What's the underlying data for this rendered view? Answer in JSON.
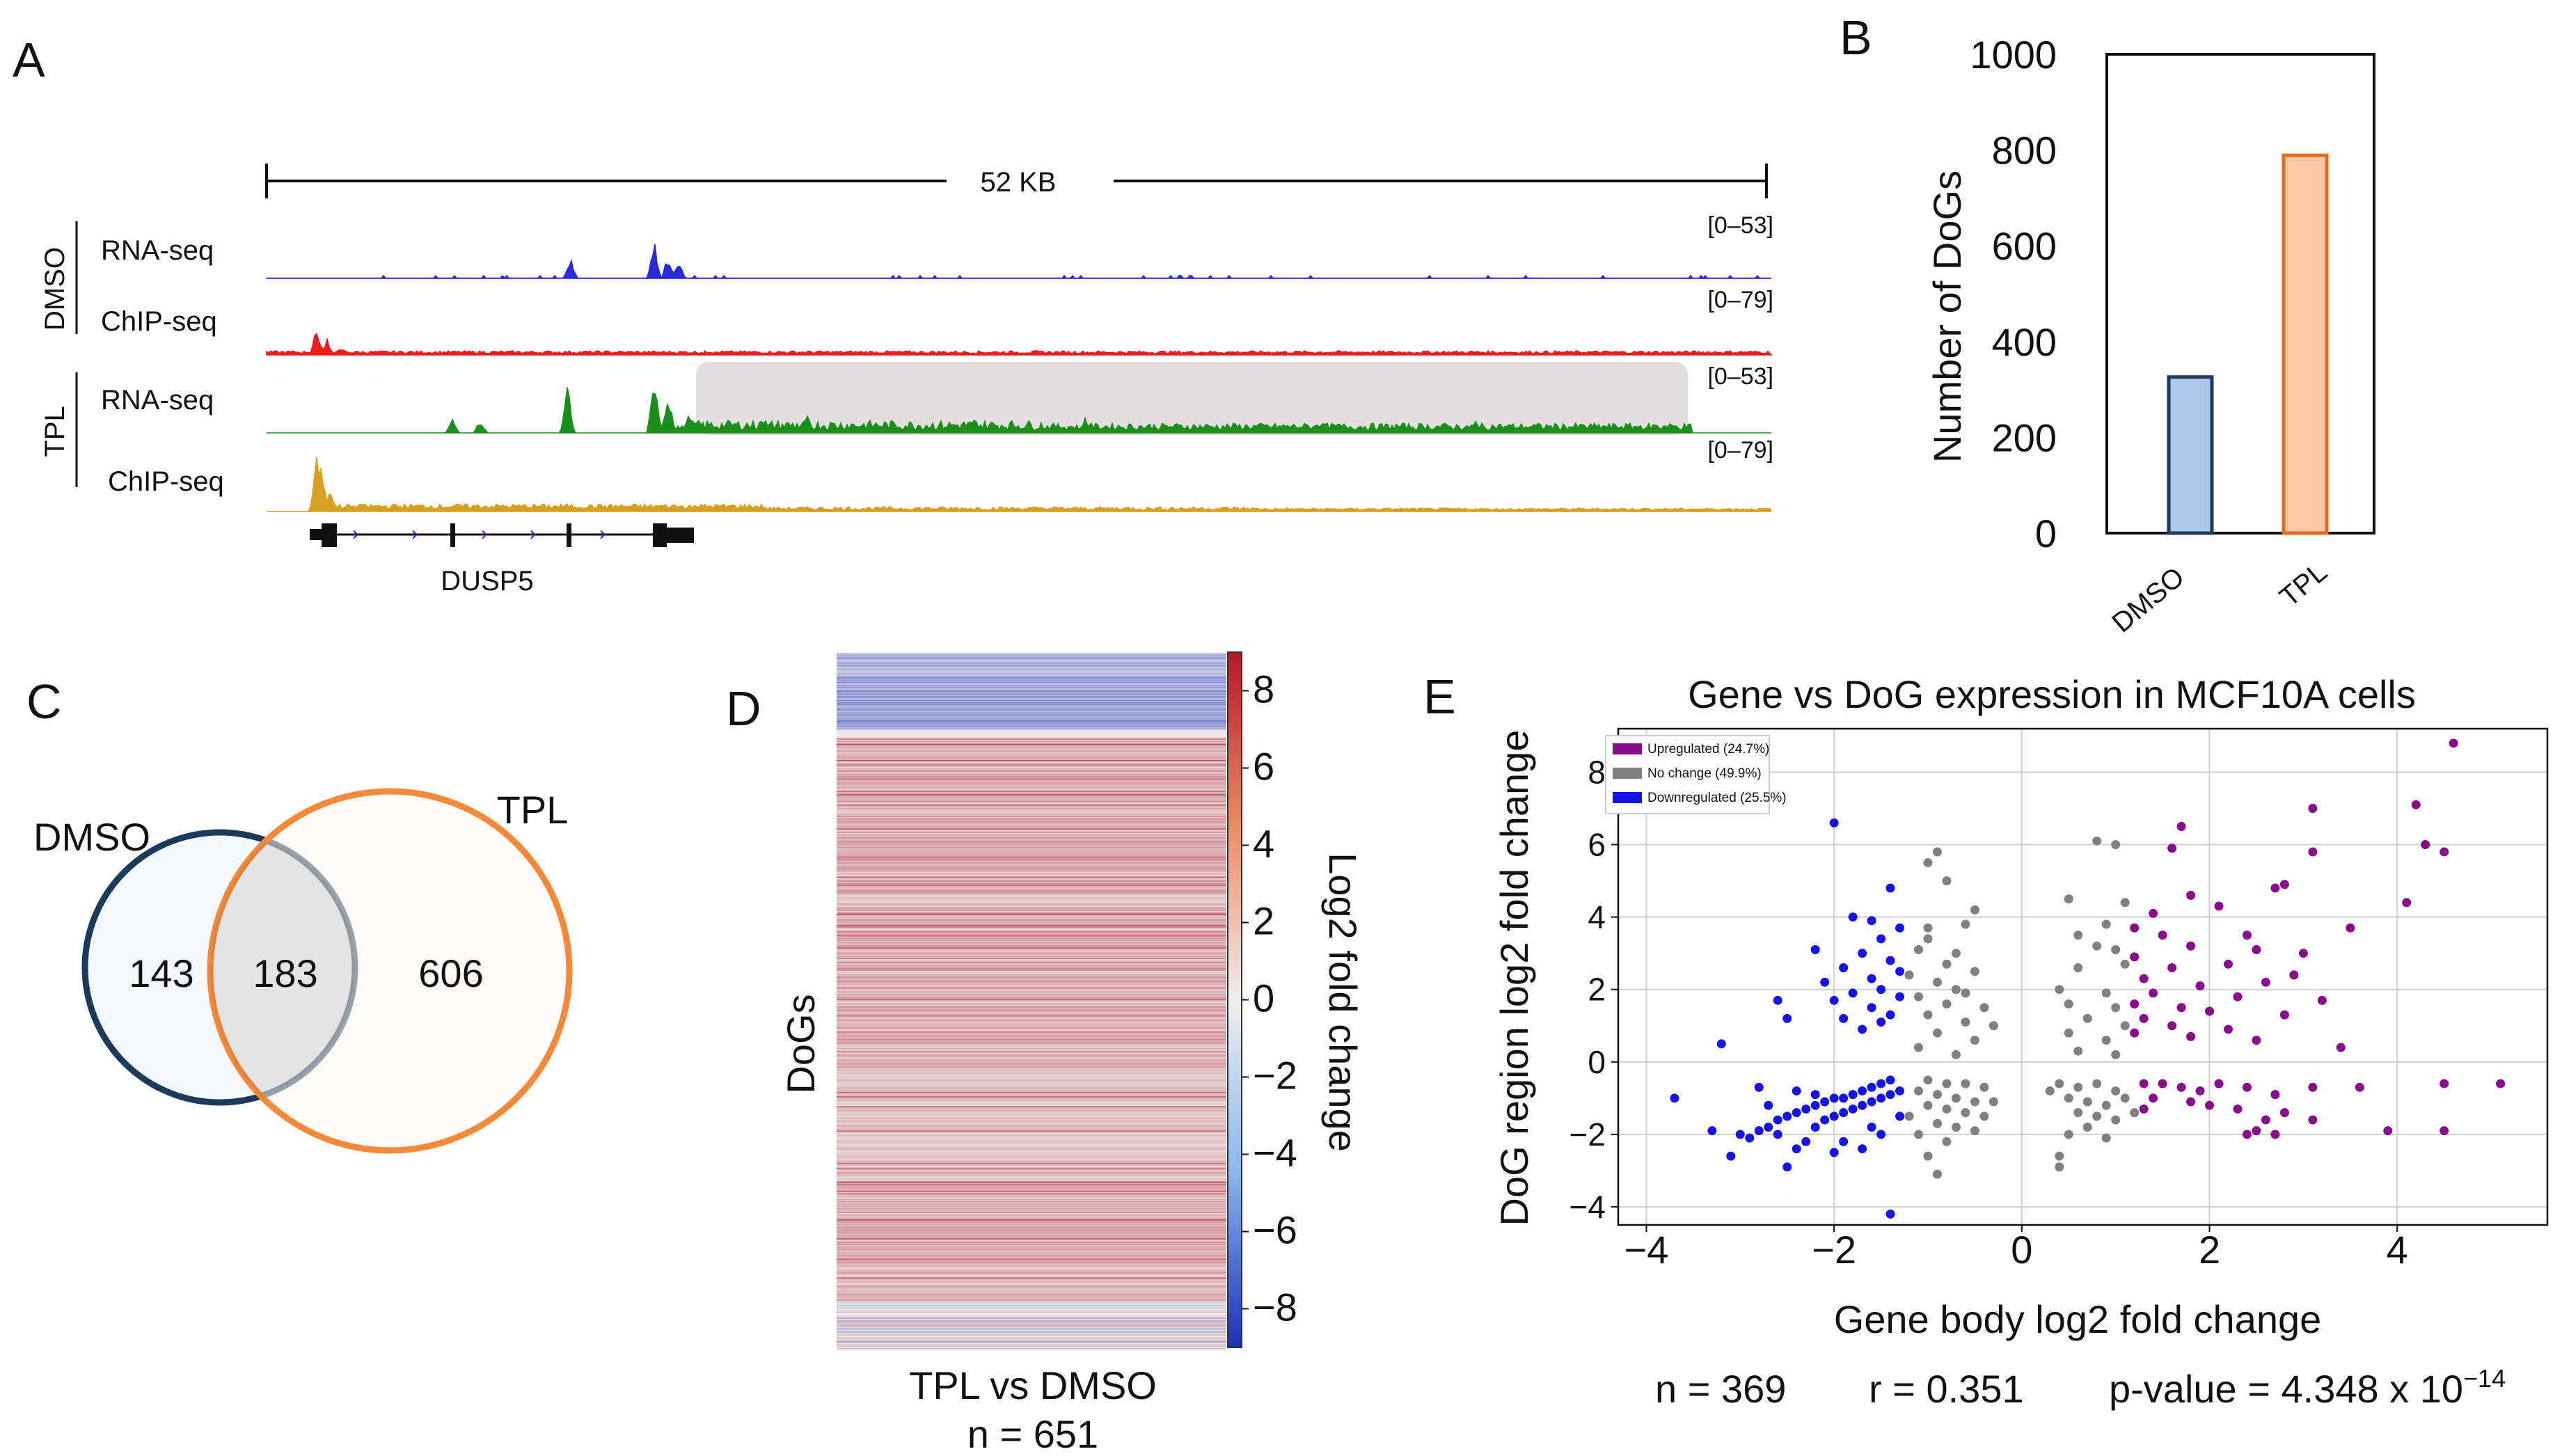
{
  "panels": {
    "A": {
      "letter": "A",
      "scale_label": "52 KB",
      "group_labels": [
        "DMSO",
        "TPL"
      ],
      "tracks": [
        {
          "label": "RNA-seq",
          "range": "[0–53]",
          "color": "#2a2ad9"
        },
        {
          "label": "ChIP-seq",
          "range": "[0–79]",
          "color": "#ee1c1c"
        },
        {
          "label": "RNA-seq",
          "range": "[0–53]",
          "color": "#1a8f1a"
        },
        {
          "label": "ChIP-seq",
          "range": "[0–79]",
          "color": "#d8a020"
        }
      ],
      "gene_name": "DUSP5",
      "highlight_color": "#e3dfdf"
    },
    "B": {
      "letter": "B",
      "ylabel": "Number of DoGs",
      "yticks": [
        "0",
        "200",
        "400",
        "600",
        "800",
        "1000"
      ],
      "categories": [
        "DMSO",
        "TPL"
      ],
      "bar_colors": [
        "#aec7e8",
        "#f9c9a6"
      ],
      "bar_edge_colors": [
        "#1f3b5e",
        "#e06a1c"
      ]
    },
    "C": {
      "letter": "C",
      "set_labels": [
        "DMSO",
        "TPL"
      ],
      "counts": [
        "143",
        "183",
        "606"
      ],
      "circle_colors": [
        "#1b3a5c",
        "#f5893a"
      ]
    },
    "D": {
      "letter": "D",
      "ylabel": "DoGs",
      "xlabel": "TPL vs DMSO",
      "n_label": "n = 651",
      "cbar_label": "Log2 fold change",
      "cbar_ticks": [
        "8",
        "6",
        "4",
        "2",
        "0",
        "−2",
        "−4",
        "−6",
        "−8"
      ]
    },
    "E": {
      "letter": "E",
      "title": "Gene vs DoG expression in MCF10A cells",
      "xlabel": "Gene body log2 fold change",
      "ylabel": "DoG region log2 fold change",
      "xticks": [
        "−4",
        "−2",
        "0",
        "2",
        "4"
      ],
      "yticks": [
        "−4",
        "−2",
        "0",
        "2",
        "4",
        "6",
        "8"
      ],
      "legend": [
        {
          "label": "Upregulated (24.7%)",
          "color": "#8b0a8b"
        },
        {
          "label": "No change (49.9%)",
          "color": "#808080"
        },
        {
          "label": "Downregulated (25.5%)",
          "color": "#1414e6"
        }
      ],
      "stats": {
        "n": "n = 369",
        "r": "r = 0.351",
        "p_prefix": "p-value = 4.348 x 10",
        "p_exp": "−14"
      }
    }
  },
  "chart_data": [
    {
      "type": "bar",
      "title": "",
      "categories": [
        "DMSO",
        "TPL"
      ],
      "values": [
        326,
        789
      ],
      "xlabel": "",
      "ylabel": "Number of DoGs",
      "ylim": [
        0,
        1000
      ]
    },
    {
      "type": "venn",
      "sets": [
        "DMSO",
        "TPL"
      ],
      "values": {
        "DMSO_only": 143,
        "both": 183,
        "TPL_only": 606
      }
    },
    {
      "type": "heatmap",
      "xlabel": "TPL vs DMSO",
      "ylabel": "DoGs",
      "n": 651,
      "colorbar": {
        "label": "Log2 fold change",
        "range": [
          -9,
          9
        ],
        "ticks": [
          8,
          6,
          4,
          2,
          0,
          -2,
          -4,
          -6,
          -8
        ]
      }
    },
    {
      "type": "scatter",
      "title": "Gene vs DoG expression in MCF10A cells",
      "xlabel": "Gene body log2 fold change",
      "ylabel": "DoG region log2 fold change",
      "xlim": [
        -4.3,
        5.6
      ],
      "ylim": [
        -4.5,
        9.2
      ],
      "grid": true,
      "legend_position": "top-left",
      "series": [
        {
          "name": "Upregulated (24.7%)",
          "points": [
            [
              4.6,
              8.8
            ],
            [
              4.2,
              7.1
            ],
            [
              3.1,
              7.0
            ],
            [
              4.3,
              6.0
            ],
            [
              4.5,
              5.8
            ],
            [
              1.7,
              6.5
            ],
            [
              1.6,
              5.9
            ],
            [
              3.1,
              5.8
            ],
            [
              2.8,
              4.9
            ],
            [
              2.7,
              4.8
            ],
            [
              1.8,
              4.6
            ],
            [
              4.1,
              4.4
            ],
            [
              2.1,
              4.3
            ],
            [
              1.4,
              4.1
            ],
            [
              1.2,
              3.7
            ],
            [
              3.5,
              3.7
            ],
            [
              2.4,
              3.5
            ],
            [
              1.5,
              3.5
            ],
            [
              1.8,
              3.2
            ],
            [
              2.5,
              3.1
            ],
            [
              3.0,
              3.0
            ],
            [
              1.2,
              2.9
            ],
            [
              2.2,
              2.7
            ],
            [
              1.6,
              2.6
            ],
            [
              2.9,
              2.4
            ],
            [
              1.3,
              2.3
            ],
            [
              1.9,
              2.1
            ],
            [
              2.6,
              2.2
            ],
            [
              1.4,
              1.9
            ],
            [
              2.3,
              1.8
            ],
            [
              3.2,
              1.7
            ],
            [
              1.2,
              1.6
            ],
            [
              1.7,
              1.5
            ],
            [
              2.0,
              1.4
            ],
            [
              2.8,
              1.3
            ],
            [
              1.3,
              1.2
            ],
            [
              1.6,
              1.0
            ],
            [
              2.2,
              0.9
            ],
            [
              1.2,
              0.8
            ],
            [
              1.8,
              0.7
            ],
            [
              2.5,
              0.6
            ],
            [
              3.4,
              0.4
            ],
            [
              1.3,
              -0.6
            ],
            [
              1.5,
              -0.6
            ],
            [
              1.7,
              -0.7
            ],
            [
              1.9,
              -0.8
            ],
            [
              2.1,
              -0.6
            ],
            [
              2.4,
              -0.7
            ],
            [
              2.7,
              -0.9
            ],
            [
              3.1,
              -0.7
            ],
            [
              3.6,
              -0.7
            ],
            [
              4.5,
              -0.6
            ],
            [
              5.1,
              -0.6
            ],
            [
              1.4,
              -1.0
            ],
            [
              2.0,
              -1.2
            ],
            [
              2.3,
              -1.3
            ],
            [
              2.8,
              -1.4
            ],
            [
              2.6,
              -1.6
            ],
            [
              2.5,
              -1.9
            ],
            [
              2.7,
              -2.0
            ],
            [
              2.4,
              -2.0
            ],
            [
              3.1,
              -1.6
            ],
            [
              3.9,
              -1.9
            ],
            [
              4.5,
              -1.9
            ],
            [
              1.3,
              -1.3
            ],
            [
              1.8,
              -1.1
            ]
          ]
        },
        {
          "name": "No change (49.9%)",
          "points": [
            [
              0.8,
              6.1
            ],
            [
              1.0,
              6.0
            ],
            [
              -0.9,
              5.8
            ],
            [
              -1.0,
              5.5
            ],
            [
              -0.8,
              5.0
            ],
            [
              0.5,
              4.5
            ],
            [
              1.1,
              4.4
            ],
            [
              -0.5,
              4.2
            ],
            [
              -0.6,
              3.8
            ],
            [
              -1.0,
              3.7
            ],
            [
              0.9,
              3.8
            ],
            [
              0.6,
              3.5
            ],
            [
              -1.0,
              3.4
            ],
            [
              -0.7,
              3.0
            ],
            [
              -1.1,
              3.1
            ],
            [
              0.8,
              3.2
            ],
            [
              1.0,
              3.1
            ],
            [
              -0.8,
              2.7
            ],
            [
              -0.5,
              2.5
            ],
            [
              -1.2,
              2.4
            ],
            [
              0.6,
              2.6
            ],
            [
              1.1,
              2.7
            ],
            [
              -0.9,
              2.2
            ],
            [
              -0.7,
              2.0
            ],
            [
              -0.6,
              1.9
            ],
            [
              0.4,
              2.0
            ],
            [
              0.9,
              1.9
            ],
            [
              -1.1,
              1.8
            ],
            [
              -0.8,
              1.6
            ],
            [
              -0.4,
              1.5
            ],
            [
              0.5,
              1.6
            ],
            [
              1.0,
              1.5
            ],
            [
              -1.0,
              1.3
            ],
            [
              -0.6,
              1.1
            ],
            [
              -0.3,
              1.0
            ],
            [
              0.7,
              1.2
            ],
            [
              1.1,
              1.0
            ],
            [
              -0.9,
              0.8
            ],
            [
              -0.5,
              0.6
            ],
            [
              0.5,
              0.8
            ],
            [
              0.9,
              0.6
            ],
            [
              -1.1,
              0.4
            ],
            [
              -0.7,
              0.2
            ],
            [
              0.6,
              0.3
            ],
            [
              1.0,
              0.2
            ],
            [
              -1.0,
              -0.5
            ],
            [
              -0.8,
              -0.6
            ],
            [
              -0.6,
              -0.6
            ],
            [
              -0.4,
              -0.7
            ],
            [
              -1.1,
              -0.8
            ],
            [
              -0.9,
              -0.9
            ],
            [
              -0.7,
              -1.0
            ],
            [
              -0.5,
              -1.1
            ],
            [
              -0.3,
              -1.1
            ],
            [
              -1.0,
              -1.2
            ],
            [
              -0.8,
              -1.3
            ],
            [
              -0.6,
              -1.4
            ],
            [
              -0.4,
              -1.5
            ],
            [
              -1.2,
              -1.5
            ],
            [
              -0.9,
              -1.7
            ],
            [
              -0.7,
              -1.8
            ],
            [
              -0.5,
              -1.9
            ],
            [
              -1.1,
              -2.0
            ],
            [
              -0.8,
              -2.2
            ],
            [
              -1.0,
              -2.6
            ],
            [
              -0.9,
              -3.1
            ],
            [
              0.4,
              -0.6
            ],
            [
              0.6,
              -0.7
            ],
            [
              0.8,
              -0.6
            ],
            [
              1.0,
              -0.8
            ],
            [
              0.5,
              -1.0
            ],
            [
              0.7,
              -1.1
            ],
            [
              0.9,
              -1.2
            ],
            [
              1.1,
              -1.0
            ],
            [
              0.6,
              -1.4
            ],
            [
              0.8,
              -1.5
            ],
            [
              1.0,
              -1.6
            ],
            [
              0.7,
              -1.8
            ],
            [
              0.5,
              -2.0
            ],
            [
              0.9,
              -2.1
            ],
            [
              0.4,
              -2.6
            ],
            [
              0.4,
              -2.9
            ],
            [
              1.2,
              -1.4
            ],
            [
              0.3,
              -0.8
            ]
          ]
        },
        {
          "name": "Downregulated (25.5%)",
          "points": [
            [
              -2.0,
              6.6
            ],
            [
              -1.4,
              4.8
            ],
            [
              -1.8,
              4.0
            ],
            [
              -1.6,
              3.9
            ],
            [
              -1.3,
              3.7
            ],
            [
              -1.5,
              3.4
            ],
            [
              -2.2,
              3.1
            ],
            [
              -1.7,
              3.0
            ],
            [
              -1.4,
              2.8
            ],
            [
              -1.9,
              2.6
            ],
            [
              -1.3,
              2.5
            ],
            [
              -1.6,
              2.3
            ],
            [
              -2.1,
              2.2
            ],
            [
              -1.5,
              2.0
            ],
            [
              -1.8,
              1.9
            ],
            [
              -1.3,
              1.8
            ],
            [
              -2.0,
              1.7
            ],
            [
              -2.6,
              1.7
            ],
            [
              -1.6,
              1.5
            ],
            [
              -1.4,
              1.3
            ],
            [
              -1.9,
              1.2
            ],
            [
              -1.5,
              1.1
            ],
            [
              -2.5,
              1.2
            ],
            [
              -1.7,
              0.9
            ],
            [
              -3.2,
              0.5
            ],
            [
              -3.7,
              -1.0
            ],
            [
              -2.9,
              -2.1
            ],
            [
              -3.0,
              -2.0
            ],
            [
              -3.1,
              -2.6
            ],
            [
              -2.8,
              -1.9
            ],
            [
              -2.7,
              -1.8
            ],
            [
              -2.6,
              -1.6
            ],
            [
              -2.5,
              -1.5
            ],
            [
              -2.4,
              -1.4
            ],
            [
              -2.3,
              -1.3
            ],
            [
              -2.2,
              -1.2
            ],
            [
              -2.1,
              -1.1
            ],
            [
              -2.0,
              -1.0
            ],
            [
              -1.9,
              -1.0
            ],
            [
              -1.8,
              -0.9
            ],
            [
              -1.7,
              -0.8
            ],
            [
              -1.6,
              -0.7
            ],
            [
              -1.5,
              -0.6
            ],
            [
              -1.4,
              -0.5
            ],
            [
              -2.6,
              -2.0
            ],
            [
              -2.4,
              -2.4
            ],
            [
              -2.5,
              -2.9
            ],
            [
              -2.3,
              -2.2
            ],
            [
              -2.2,
              -1.8
            ],
            [
              -2.1,
              -1.6
            ],
            [
              -2.0,
              -1.5
            ],
            [
              -1.9,
              -1.4
            ],
            [
              -1.8,
              -1.3
            ],
            [
              -1.7,
              -1.2
            ],
            [
              -1.6,
              -1.1
            ],
            [
              -1.5,
              -1.0
            ],
            [
              -1.4,
              -0.9
            ],
            [
              -1.3,
              -0.8
            ],
            [
              -2.7,
              -1.2
            ],
            [
              -2.4,
              -0.8
            ],
            [
              -2.2,
              -0.9
            ],
            [
              -1.9,
              -2.2
            ],
            [
              -1.7,
              -2.4
            ],
            [
              -1.5,
              -2.0
            ],
            [
              -1.4,
              -4.2
            ],
            [
              -2.8,
              -0.7
            ],
            [
              -3.3,
              -1.9
            ],
            [
              -1.3,
              -1.5
            ],
            [
              -1.6,
              -1.8
            ],
            [
              -2.0,
              -2.5
            ]
          ]
        }
      ]
    }
  ]
}
